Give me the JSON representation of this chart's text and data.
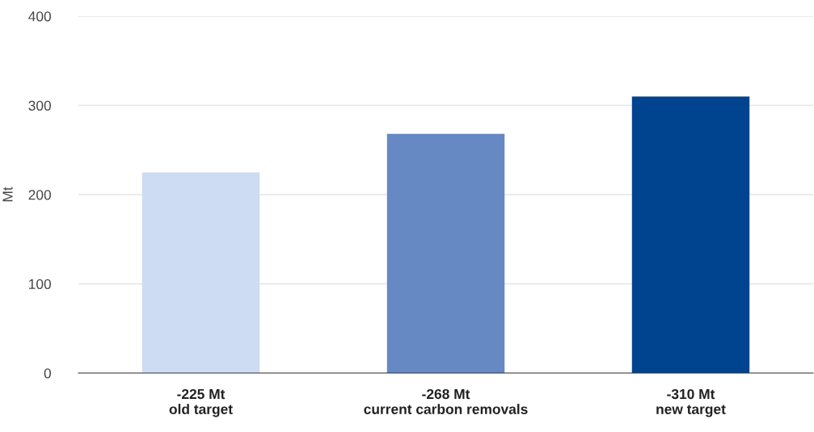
{
  "chart_data": {
    "type": "bar",
    "ylabel": "Mt",
    "categories": [
      "-225 Mt\nold target",
      "-268 Mt\ncurrent carbon removals",
      "-310 Mt\nnew target"
    ],
    "values": [
      225,
      268,
      310
    ],
    "colors": [
      "#cddcf2",
      "#6688c3",
      "#00448f"
    ],
    "ylim": [
      0,
      400
    ],
    "yticks": [
      0,
      100,
      200,
      300,
      400
    ],
    "grid": "y"
  }
}
